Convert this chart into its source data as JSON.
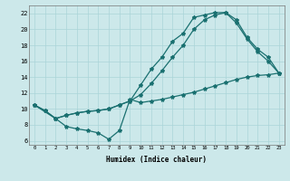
{
  "xlabel": "Humidex (Indice chaleur)",
  "bg_color": "#cce8ea",
  "grid_color": "#aad4d8",
  "line_color": "#1a7070",
  "xlim": [
    -0.5,
    23.5
  ],
  "ylim": [
    5.5,
    23.0
  ],
  "xticks": [
    0,
    1,
    2,
    3,
    4,
    5,
    6,
    7,
    8,
    9,
    10,
    11,
    12,
    13,
    14,
    15,
    16,
    17,
    18,
    19,
    20,
    21,
    22,
    23
  ],
  "yticks": [
    6,
    8,
    10,
    12,
    14,
    16,
    18,
    20,
    22
  ],
  "line1_x": [
    0,
    1,
    2,
    3,
    4,
    5,
    6,
    7,
    8,
    9,
    10,
    11,
    12,
    13,
    14,
    15,
    16,
    17,
    18,
    19,
    20,
    21,
    22,
    23
  ],
  "line1_y": [
    10.5,
    9.8,
    8.8,
    7.8,
    7.5,
    7.3,
    7.0,
    6.2,
    7.3,
    11.2,
    10.8,
    11.0,
    11.2,
    11.5,
    11.8,
    12.1,
    12.5,
    12.9,
    13.3,
    13.7,
    14.0,
    14.2,
    14.3,
    14.5
  ],
  "line2_x": [
    0,
    1,
    2,
    3,
    4,
    5,
    6,
    7,
    8,
    9,
    10,
    11,
    12,
    13,
    14,
    15,
    16,
    17,
    18,
    19,
    20,
    21,
    22,
    23
  ],
  "line2_y": [
    10.5,
    9.8,
    8.8,
    9.2,
    9.5,
    9.7,
    9.8,
    10.0,
    10.5,
    11.0,
    13.0,
    15.0,
    16.5,
    18.5,
    19.5,
    21.5,
    21.8,
    22.1,
    22.1,
    20.8,
    18.8,
    17.2,
    16.0,
    14.5
  ],
  "line3_x": [
    0,
    2,
    3,
    4,
    5,
    6,
    7,
    8,
    9,
    10,
    11,
    12,
    13,
    14,
    15,
    16,
    17,
    18,
    19,
    20,
    21,
    22,
    23
  ],
  "line3_y": [
    10.5,
    8.8,
    9.2,
    9.5,
    9.7,
    9.8,
    10.0,
    10.5,
    11.0,
    11.8,
    13.2,
    14.8,
    16.5,
    18.0,
    20.0,
    21.2,
    21.8,
    22.1,
    21.2,
    19.0,
    17.5,
    16.5,
    14.5
  ]
}
